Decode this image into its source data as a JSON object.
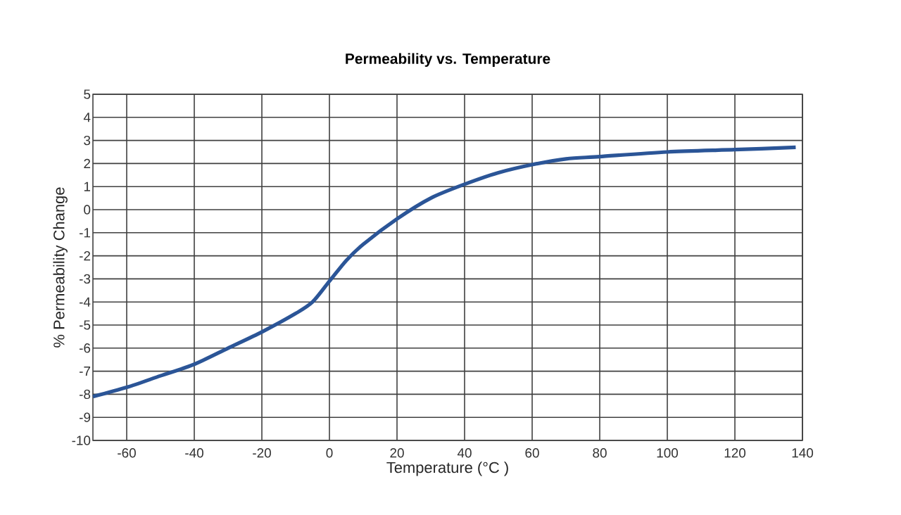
{
  "chart_data": {
    "type": "line",
    "title": "Permeability vs. Temperature",
    "xlabel": "Temperature (°C )",
    "ylabel": "% Permeability Change",
    "x": [
      -70,
      -60,
      -50,
      -40,
      -30,
      -20,
      -10,
      -5,
      0,
      5,
      10,
      20,
      30,
      40,
      50,
      60,
      70,
      80,
      100,
      120,
      138
    ],
    "series": [
      {
        "color": "#2b5597",
        "values": [
          -8.1,
          -7.7,
          -7.2,
          -6.7,
          -6.0,
          -5.3,
          -4.5,
          -4.0,
          -3.1,
          -2.2,
          -1.5,
          -0.4,
          0.5,
          1.1,
          1.6,
          1.95,
          2.2,
          2.3,
          2.5,
          2.6,
          2.7
        ]
      }
    ],
    "xlim": [
      -70,
      140
    ],
    "ylim": [
      -10,
      5
    ],
    "xticks": [
      -60,
      -40,
      -20,
      0,
      20,
      40,
      60,
      80,
      100,
      120,
      140
    ],
    "yticks": [
      -10,
      -9,
      -8,
      -7,
      -6,
      -5,
      -4,
      -3,
      -2,
      -1,
      0,
      1,
      2,
      3,
      4,
      5
    ],
    "grid": true,
    "line_style": "solid",
    "marker": "none"
  }
}
